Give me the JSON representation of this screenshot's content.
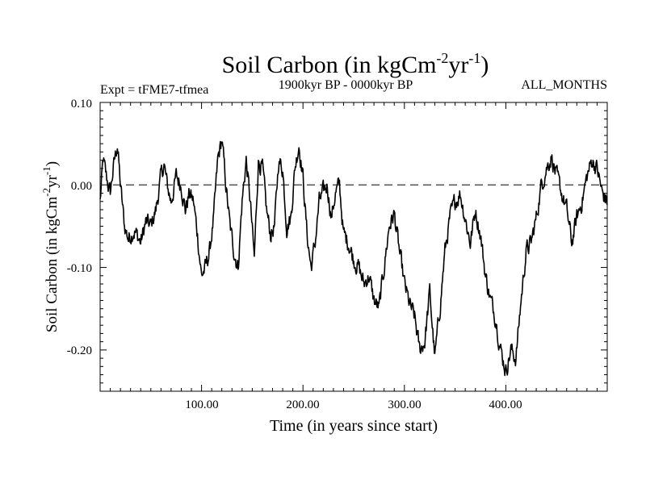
{
  "chart_data": {
    "type": "line",
    "title_main": "Soil Carbon (in kgCm",
    "title_exp1": "-2",
    "title_mid": "yr",
    "title_exp2": "-1",
    "title_end": ")",
    "subtitle": "1900kyr BP - 0000kyr BP",
    "expt_label": "Expt = tFME7-tfmea",
    "months_label": "ALL_MONTHS",
    "xlabel": "Time (in years since start)",
    "ylabel_main": "Soil Carbon (in kgCm",
    "ylabel_exp1": "-2",
    "ylabel_mid": "yr",
    "ylabel_exp2": "-1",
    "ylabel_end": ")",
    "xlim": [
      0,
      500
    ],
    "ylim": [
      -0.25,
      0.1
    ],
    "x_ticks": [
      100,
      200,
      300,
      400
    ],
    "x_tick_labels": [
      "100.00",
      "200.00",
      "300.00",
      "400.00"
    ],
    "y_ticks": [
      0.1,
      0.0,
      -0.1,
      -0.2
    ],
    "y_tick_labels": [
      "0.10",
      "0.00",
      "-0.10",
      "-0.20"
    ],
    "reference_line": 0.0,
    "series": [
      {
        "name": "Soil Carbon",
        "anchor_x": [
          0,
          3,
          6,
          10,
          13,
          17,
          20,
          24,
          28,
          33,
          36,
          40,
          45,
          50,
          55,
          60,
          63,
          66,
          70,
          75,
          80,
          84,
          88,
          92,
          96,
          100,
          104,
          108,
          112,
          116,
          120,
          124,
          128,
          132,
          136,
          140,
          144,
          148,
          152,
          156,
          160,
          164,
          168,
          172,
          176,
          180,
          184,
          188,
          192,
          196,
          200,
          204,
          208,
          212,
          216,
          220,
          224,
          228,
          232,
          236,
          240,
          245,
          250,
          255,
          260,
          265,
          270,
          275,
          280,
          285,
          290,
          295,
          300,
          305,
          310,
          315,
          320,
          325,
          330,
          335,
          340,
          345,
          350,
          355,
          360,
          365,
          370,
          375,
          380,
          385,
          390,
          395,
          400,
          405,
          410,
          415,
          420,
          425,
          430,
          435,
          440,
          445,
          450,
          455,
          460,
          465,
          470,
          475,
          480,
          485,
          490,
          495,
          500
        ],
        "anchor_y": [
          -0.02,
          0.03,
          0.01,
          -0.01,
          0.02,
          0.05,
          0.0,
          -0.05,
          -0.065,
          -0.055,
          -0.06,
          -0.07,
          -0.045,
          -0.05,
          -0.03,
          0.01,
          0.025,
          0.0,
          -0.02,
          0.01,
          0.0,
          -0.03,
          -0.01,
          -0.02,
          -0.06,
          -0.11,
          -0.1,
          -0.08,
          -0.04,
          0.03,
          0.055,
          0.0,
          -0.05,
          -0.08,
          -0.1,
          -0.02,
          0.03,
          -0.02,
          -0.09,
          0.03,
          0.02,
          -0.03,
          -0.06,
          -0.05,
          0.03,
          0.02,
          -0.05,
          -0.04,
          0.02,
          0.05,
          0.01,
          -0.06,
          -0.1,
          -0.07,
          -0.02,
          -0.01,
          0.0,
          -0.04,
          -0.01,
          0.0,
          -0.06,
          -0.07,
          -0.09,
          -0.1,
          -0.12,
          -0.11,
          -0.14,
          -0.15,
          -0.1,
          -0.05,
          -0.035,
          -0.08,
          -0.12,
          -0.145,
          -0.16,
          -0.2,
          -0.19,
          -0.13,
          -0.21,
          -0.15,
          -0.08,
          -0.04,
          -0.02,
          -0.01,
          -0.04,
          -0.07,
          -0.03,
          -0.06,
          -0.11,
          -0.14,
          -0.16,
          -0.2,
          -0.225,
          -0.2,
          -0.21,
          -0.14,
          -0.08,
          -0.07,
          -0.04,
          0.0,
          0.02,
          0.035,
          0.01,
          -0.01,
          -0.03,
          -0.07,
          -0.04,
          -0.02,
          0.01,
          0.03,
          0.02,
          -0.01,
          -0.02
        ]
      }
    ]
  },
  "colors": {
    "background": "#ffffff",
    "line": "#000000",
    "reference_line": "#555555"
  }
}
